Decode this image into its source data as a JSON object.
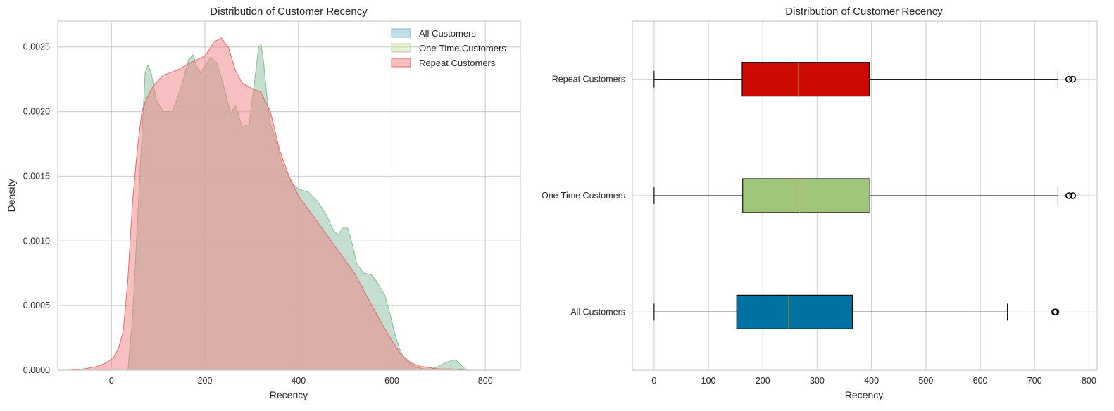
{
  "chart_data": [
    {
      "type": "area",
      "title": "Distribution of Customer Recency",
      "xlabel": "Recency",
      "ylabel": "Density",
      "xlim": [
        -115,
        875
      ],
      "ylim": [
        0,
        0.0027
      ],
      "xticks": [
        0,
        200,
        400,
        600,
        800
      ],
      "yticks": [
        0.0,
        0.0005,
        0.001,
        0.0015,
        0.002,
        0.0025
      ],
      "ytick_labels": [
        "0.0000",
        "0.0005",
        "0.0010",
        "0.0015",
        "0.0020",
        "0.0025"
      ],
      "grid": true,
      "legend_position": "top-right",
      "series": [
        {
          "name": "All Customers",
          "color": "#8fc3d9",
          "x": [
            35,
            45,
            55,
            65,
            72,
            78,
            85,
            95,
            110,
            130,
            150,
            165,
            175,
            182,
            190,
            200,
            212,
            225,
            240,
            255,
            265,
            280,
            295,
            305,
            315,
            320,
            325,
            333,
            340,
            350,
            365,
            385,
            400,
            420,
            440,
            460,
            475,
            485,
            495,
            505,
            515,
            525,
            540,
            555,
            565,
            575,
            585,
            595,
            605,
            615,
            625,
            640,
            655,
            670,
            685,
            700,
            715,
            725,
            733,
            740,
            748,
            757,
            765
          ],
          "values": [
            0.0,
            0.0004,
            0.0011,
            0.0018,
            0.0023,
            0.00236,
            0.0023,
            0.0021,
            0.002,
            0.002,
            0.0022,
            0.0024,
            0.00244,
            0.00235,
            0.0023,
            0.00235,
            0.00242,
            0.00238,
            0.0022,
            0.00198,
            0.00205,
            0.00188,
            0.0019,
            0.0022,
            0.0025,
            0.00252,
            0.0024,
            0.0021,
            0.0019,
            0.0018,
            0.0016,
            0.00145,
            0.0014,
            0.00138,
            0.00131,
            0.0012,
            0.00108,
            0.00105,
            0.0011,
            0.0011,
            0.00098,
            0.00082,
            0.00075,
            0.00074,
            0.0007,
            0.00064,
            0.00058,
            0.00045,
            0.0003,
            0.00018,
            0.0001,
            5e-05,
            2e-05,
            1e-05,
            1e-05,
            3e-05,
            6e-05,
            7e-05,
            8e-05,
            7e-05,
            4e-05,
            1e-05,
            0.0
          ]
        },
        {
          "name": "One-Time Customers",
          "color": "#cfe3b4",
          "x": [
            35,
            45,
            55,
            65,
            72,
            78,
            85,
            95,
            110,
            130,
            150,
            165,
            175,
            182,
            190,
            200,
            212,
            225,
            240,
            255,
            265,
            280,
            295,
            305,
            315,
            320,
            325,
            333,
            340,
            350,
            365,
            385,
            400,
            420,
            440,
            460,
            475,
            485,
            495,
            505,
            515,
            525,
            540,
            555,
            565,
            575,
            585,
            595,
            605,
            615,
            625,
            640,
            655,
            670,
            685,
            700,
            715,
            725,
            733,
            740,
            748,
            757,
            765
          ],
          "values": [
            0.0,
            0.0004,
            0.0011,
            0.0018,
            0.0023,
            0.00236,
            0.0023,
            0.0021,
            0.002,
            0.002,
            0.0022,
            0.0024,
            0.00244,
            0.00235,
            0.0023,
            0.00235,
            0.00242,
            0.00238,
            0.0022,
            0.00198,
            0.00205,
            0.00188,
            0.0019,
            0.0022,
            0.0025,
            0.00252,
            0.0024,
            0.0021,
            0.0019,
            0.0018,
            0.0016,
            0.00145,
            0.0014,
            0.00138,
            0.00131,
            0.0012,
            0.00108,
            0.00105,
            0.0011,
            0.0011,
            0.00098,
            0.00082,
            0.00075,
            0.00074,
            0.0007,
            0.00064,
            0.00058,
            0.00045,
            0.0003,
            0.00018,
            0.0001,
            5e-05,
            2e-05,
            1e-05,
            1e-05,
            3e-05,
            6e-05,
            7e-05,
            8e-05,
            7e-05,
            4e-05,
            1e-05,
            0.0
          ]
        },
        {
          "name": "Repeat Customers",
          "color": "#f08080",
          "x": [
            -90,
            -60,
            -30,
            -10,
            5,
            15,
            25,
            35,
            45,
            55,
            65,
            75,
            90,
            110,
            140,
            170,
            200,
            220,
            235,
            250,
            265,
            280,
            300,
            320,
            340,
            360,
            380,
            400,
            430,
            460,
            490,
            520,
            550,
            580,
            600,
            620,
            640,
            660,
            680,
            700,
            730,
            760,
            800,
            830
          ],
          "values": [
            0.0,
            1e-05,
            3e-05,
            6e-05,
            0.0001,
            0.00017,
            0.0003,
            0.0007,
            0.0013,
            0.0017,
            0.002,
            0.0021,
            0.0022,
            0.00228,
            0.00232,
            0.00238,
            0.00243,
            0.00254,
            0.00257,
            0.0025,
            0.00232,
            0.00222,
            0.00218,
            0.00215,
            0.002,
            0.0017,
            0.0015,
            0.00135,
            0.0012,
            0.00105,
            0.0009,
            0.00075,
            0.00055,
            0.00035,
            0.00023,
            0.00012,
            6e-05,
            3e-05,
            2e-05,
            1e-05,
            1e-05,
            0.0,
            0.0,
            0.0
          ]
        }
      ]
    },
    {
      "type": "boxplot",
      "title": "Distribution of Customer Recency",
      "xlabel": "Recency",
      "ylabel": "",
      "xlim": [
        -40,
        815
      ],
      "xticks": [
        0,
        100,
        200,
        300,
        400,
        500,
        600,
        700,
        800
      ],
      "grid": true,
      "categories": [
        "All Customers",
        "One-Time Customers",
        "Repeat Customers"
      ],
      "boxes": [
        {
          "name": "All Customers",
          "color": "#0072a1",
          "whisker_low": 0,
          "q1": 152,
          "median": 248,
          "q3": 365,
          "whisker_high": 650,
          "outliers": [
            737,
            739
          ]
        },
        {
          "name": "One-Time Customers",
          "color": "#9fc47a",
          "whisker_low": 0,
          "q1": 163,
          "median": 268,
          "q3": 397,
          "whisker_high": 743,
          "outliers": [
            763,
            770
          ]
        },
        {
          "name": "Repeat Customers",
          "color": "#cc0a00",
          "whisker_low": 0,
          "q1": 162,
          "median": 266,
          "q3": 396,
          "whisker_high": 743,
          "outliers": [
            763,
            770
          ]
        }
      ]
    }
  ]
}
